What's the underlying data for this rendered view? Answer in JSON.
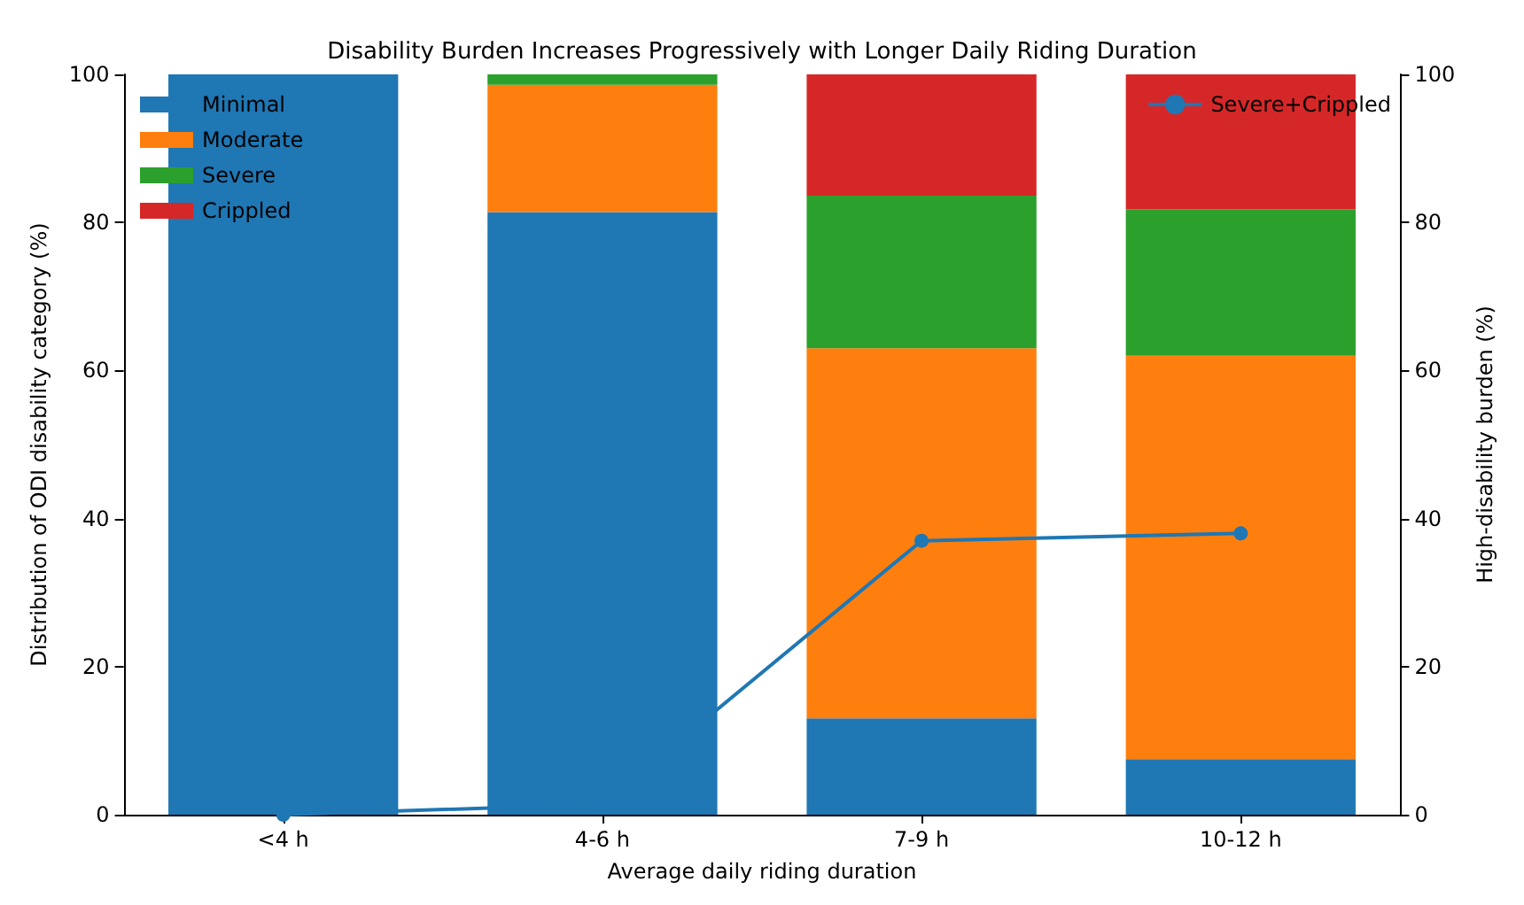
{
  "chart_data": {
    "type": "bar",
    "title": "Disability Burden Increases Progressively with Longer Daily Riding Duration",
    "xlabel": "Average daily riding duration",
    "ylabel": "Distribution of ODI disability category (%)",
    "y2label": "High-disability burden (%)",
    "categories": [
      "<4 h",
      "4-6 h",
      "7-9 h",
      "10-12 h"
    ],
    "stacked": true,
    "series": [
      {
        "name": "Minimal",
        "color": "#1f77b4",
        "values": [
          100,
          81.4,
          13.0,
          7.5
        ]
      },
      {
        "name": "Moderate",
        "color": "#ff7f0e",
        "values": [
          0,
          17.2,
          50.0,
          54.5
        ]
      },
      {
        "name": "Severe",
        "color": "#2ca02c",
        "values": [
          0,
          1.4,
          20.6,
          19.8
        ]
      },
      {
        "name": "Crippled",
        "color": "#d62728",
        "values": [
          0,
          0,
          16.4,
          18.2
        ]
      },
      {
        "name": "Severe+Crippled",
        "type": "line",
        "axis": "y2",
        "color": "#1f77b4",
        "values": [
          0,
          1.4,
          37.0,
          38.0
        ],
        "marker": "circle",
        "line_style": "solid"
      }
    ],
    "ylim": [
      0,
      100
    ],
    "yticks": [
      0,
      20,
      40,
      60,
      80,
      100
    ],
    "y2lim": [
      0,
      100
    ],
    "y2ticks": [
      0,
      20,
      40,
      60,
      80,
      100
    ],
    "grid": false,
    "legend": "top"
  }
}
